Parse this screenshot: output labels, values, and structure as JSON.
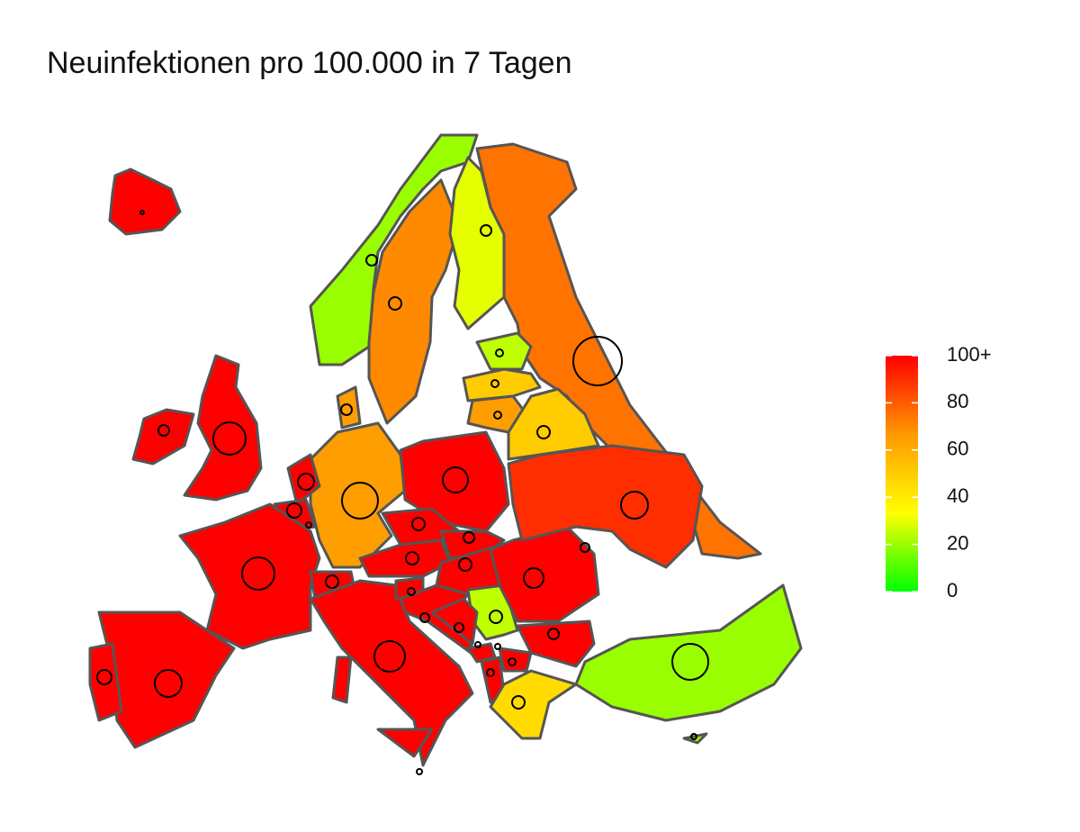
{
  "chart_data": {
    "type": "choropleth",
    "title": "Neuinfektionen pro 100.000 in 7 Tagen",
    "values": [
      100,
      100,
      100,
      20,
      70,
      30,
      75,
      25,
      50,
      65,
      50,
      65,
      65,
      100,
      100,
      100,
      100,
      100,
      100,
      100,
      100,
      100,
      100,
      100,
      100,
      100,
      100,
      100,
      100,
      25,
      100,
      100,
      100,
      45,
      100,
      100,
      100,
      90,
      20,
      20
    ],
    "colorbar": {
      "lim": [
        0,
        100
      ],
      "ticks": [
        0,
        20,
        40,
        60,
        80,
        {
          "value": 100,
          "label": "100+"
        }
      ],
      "colors": [
        "#00ff00",
        "#ffff00",
        "#ff9900",
        "#ff0000"
      ]
    }
  }
}
